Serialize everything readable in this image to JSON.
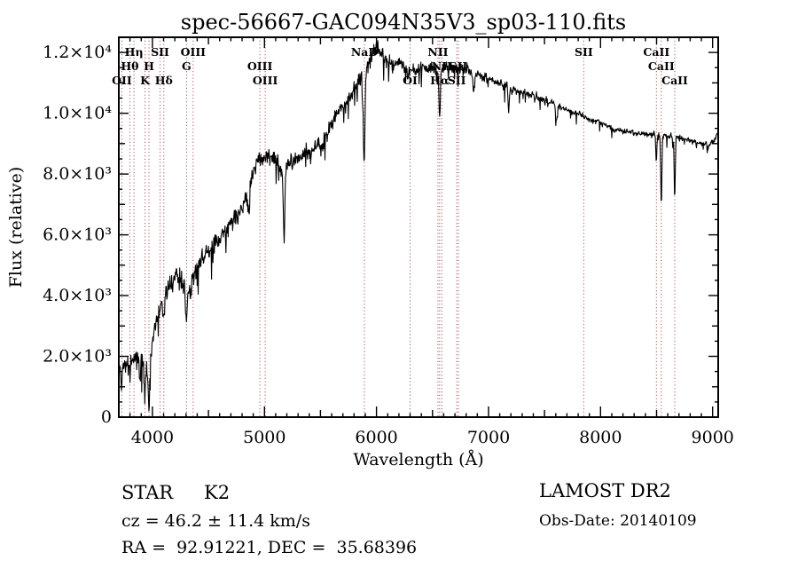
{
  "title": "spec-56667-GAC094N35V3_sp03-110.fits",
  "colors": {
    "background": "#ffffff",
    "axis": "#000000",
    "spectrum": "#000000",
    "line_marker": "#a85858",
    "text": "#000000"
  },
  "annotations": {
    "object_class": "STAR",
    "subclass": "K2",
    "cz": "cz = 46.2 ± 11.4 km/s",
    "radec": "RA =  92.91221, DEC =  35.68396",
    "survey": "LAMOST DR2",
    "obs_date": "Obs-Date: 20140109"
  },
  "chart_data": {
    "type": "line",
    "title": "spec-56667-GAC094N35V3_sp03-110.fits",
    "xlabel": "Wavelength (Å)",
    "ylabel": "Flux (relative)",
    "xlim": [
      3700,
      9050
    ],
    "ylim": [
      0,
      12500
    ],
    "grid": false,
    "x_ticks": [
      {
        "value": 4000,
        "label": "4000"
      },
      {
        "value": 5000,
        "label": "5000"
      },
      {
        "value": 6000,
        "label": "6000"
      },
      {
        "value": 7000,
        "label": "7000"
      },
      {
        "value": 8000,
        "label": "8000"
      },
      {
        "value": 9000,
        "label": "9000"
      }
    ],
    "y_ticks": [
      {
        "value": 0,
        "label": "0"
      },
      {
        "value": 2000,
        "label": "2.0×10³"
      },
      {
        "value": 4000,
        "label": "4.0×10³"
      },
      {
        "value": 6000,
        "label": "6.0×10³"
      },
      {
        "value": 8000,
        "label": "8.0×10³"
      },
      {
        "value": 10000,
        "label": "1.0×10⁴"
      },
      {
        "value": 12000,
        "label": "1.2×10⁴"
      }
    ],
    "x_minor_step": 100,
    "y_minor_step": 500,
    "spectral_lines": [
      {
        "label": "OII",
        "wavelength": 3727,
        "row": 3
      },
      {
        "label": "Hθ",
        "wavelength": 3798,
        "row": 2
      },
      {
        "label": "Hη",
        "wavelength": 3835,
        "row": 1
      },
      {
        "label": "K",
        "wavelength": 3934,
        "row": 3
      },
      {
        "label": "H",
        "wavelength": 3969,
        "row": 2
      },
      {
        "label": "SII",
        "wavelength": 4068,
        "row": 1
      },
      {
        "label": "Hδ",
        "wavelength": 4102,
        "row": 3
      },
      {
        "label": "G",
        "wavelength": 4305,
        "row": 2
      },
      {
        "label": "OIII",
        "wavelength": 4363,
        "row": 1
      },
      {
        "label": "OIII",
        "wavelength": 4959,
        "row": 2
      },
      {
        "label": "OIII",
        "wavelength": 5007,
        "row": 3
      },
      {
        "label": "NaD",
        "wavelength": 5892,
        "row": 1
      },
      {
        "label": "OI",
        "wavelength": 6300,
        "row": 3
      },
      {
        "label": "NII",
        "wavelength": 6548,
        "row": 1
      },
      {
        "label": "Hα",
        "wavelength": 6563,
        "row": 3
      },
      {
        "label": "NII",
        "wavelength": 6583,
        "row": 2
      },
      {
        "label": "SII",
        "wavelength": 6716,
        "row": 3
      },
      {
        "label": "SII",
        "wavelength": 6731,
        "row": 2
      },
      {
        "label": "SII",
        "wavelength": 7850,
        "row": 1
      },
      {
        "label": "CaII",
        "wavelength": 8498,
        "row": 1
      },
      {
        "label": "CaII",
        "wavelength": 8542,
        "row": 2
      },
      {
        "label": "CaII",
        "wavelength": 8662,
        "row": 3
      }
    ],
    "envelope": [
      [
        3700,
        1500
      ],
      [
        3740,
        1750
      ],
      [
        3780,
        1650
      ],
      [
        3820,
        1900
      ],
      [
        3860,
        1900
      ],
      [
        3900,
        2150
      ],
      [
        3935,
        1650
      ],
      [
        3970,
        1500
      ],
      [
        4000,
        2600
      ],
      [
        4040,
        3200
      ],
      [
        4080,
        3700
      ],
      [
        4120,
        4050
      ],
      [
        4160,
        4350
      ],
      [
        4200,
        4500
      ],
      [
        4250,
        4550
      ],
      [
        4300,
        4150
      ],
      [
        4350,
        4600
      ],
      [
        4400,
        5000
      ],
      [
        4450,
        5250
      ],
      [
        4500,
        5400
      ],
      [
        4550,
        5650
      ],
      [
        4600,
        5900
      ],
      [
        4650,
        6100
      ],
      [
        4700,
        6400
      ],
      [
        4750,
        6600
      ],
      [
        4800,
        6900
      ],
      [
        4850,
        7400
      ],
      [
        4900,
        8000
      ],
      [
        4950,
        8500
      ],
      [
        5000,
        8450
      ],
      [
        5050,
        8600
      ],
      [
        5100,
        8500
      ],
      [
        5150,
        8250
      ],
      [
        5200,
        8300
      ],
      [
        5250,
        8500
      ],
      [
        5300,
        8500
      ],
      [
        5350,
        8600
      ],
      [
        5400,
        8700
      ],
      [
        5450,
        8800
      ],
      [
        5500,
        9000
      ],
      [
        5550,
        9300
      ],
      [
        5600,
        9700
      ],
      [
        5650,
        10000
      ],
      [
        5700,
        10200
      ],
      [
        5750,
        10500
      ],
      [
        5800,
        10800
      ],
      [
        5850,
        11100
      ],
      [
        5900,
        11350
      ],
      [
        5950,
        11850
      ],
      [
        6000,
        12100
      ],
      [
        6050,
        12000
      ],
      [
        6100,
        11700
      ],
      [
        6150,
        11600
      ],
      [
        6200,
        11700
      ],
      [
        6250,
        11500
      ],
      [
        6300,
        11400
      ],
      [
        6350,
        11500
      ],
      [
        6400,
        11600
      ],
      [
        6450,
        11500
      ],
      [
        6500,
        11500
      ],
      [
        6550,
        11400
      ],
      [
        6600,
        11500
      ],
      [
        6650,
        11500
      ],
      [
        6700,
        11400
      ],
      [
        6750,
        11500
      ],
      [
        6800,
        11400
      ],
      [
        6850,
        11300
      ],
      [
        6900,
        11300
      ],
      [
        6950,
        11200
      ],
      [
        7000,
        11100
      ],
      [
        7100,
        11000
      ],
      [
        7200,
        10800
      ],
      [
        7300,
        10700
      ],
      [
        7400,
        10600
      ],
      [
        7500,
        10400
      ],
      [
        7600,
        10300
      ],
      [
        7700,
        10100
      ],
      [
        7800,
        10000
      ],
      [
        7900,
        9800
      ],
      [
        8000,
        9700
      ],
      [
        8100,
        9500
      ],
      [
        8200,
        9400
      ],
      [
        8300,
        9350
      ],
      [
        8400,
        9300
      ],
      [
        8500,
        9300
      ],
      [
        8600,
        9250
      ],
      [
        8700,
        9200
      ],
      [
        8800,
        9100
      ],
      [
        8900,
        9000
      ],
      [
        8960,
        8950
      ],
      [
        9010,
        9050
      ],
      [
        9040,
        9350
      ]
    ],
    "absorption_dips": [
      [
        3727,
        6,
        600
      ],
      [
        3798,
        6,
        500
      ],
      [
        3890,
        6,
        800
      ],
      [
        3933,
        7,
        900
      ],
      [
        3968,
        7,
        1100
      ],
      [
        4101,
        7,
        700
      ],
      [
        4305,
        9,
        1000
      ],
      [
        4340,
        7,
        500
      ],
      [
        4861,
        7,
        900
      ],
      [
        5175,
        7,
        2400
      ],
      [
        5890,
        7,
        3000
      ],
      [
        6280,
        5,
        400
      ],
      [
        6563,
        6,
        1600
      ],
      [
        6867,
        7,
        500
      ],
      [
        7180,
        6,
        700
      ],
      [
        7605,
        7,
        600
      ],
      [
        8498,
        5,
        900
      ],
      [
        8542,
        5,
        2300
      ],
      [
        8662,
        5,
        2000
      ]
    ],
    "noise_profile": [
      [
        3700,
        4000,
        420
      ],
      [
        4000,
        4400,
        380
      ],
      [
        4400,
        5400,
        330
      ],
      [
        5400,
        6100,
        300
      ],
      [
        6100,
        6900,
        260
      ],
      [
        6900,
        7600,
        160
      ],
      [
        7600,
        9050,
        110
      ]
    ],
    "sample_step": 4
  }
}
